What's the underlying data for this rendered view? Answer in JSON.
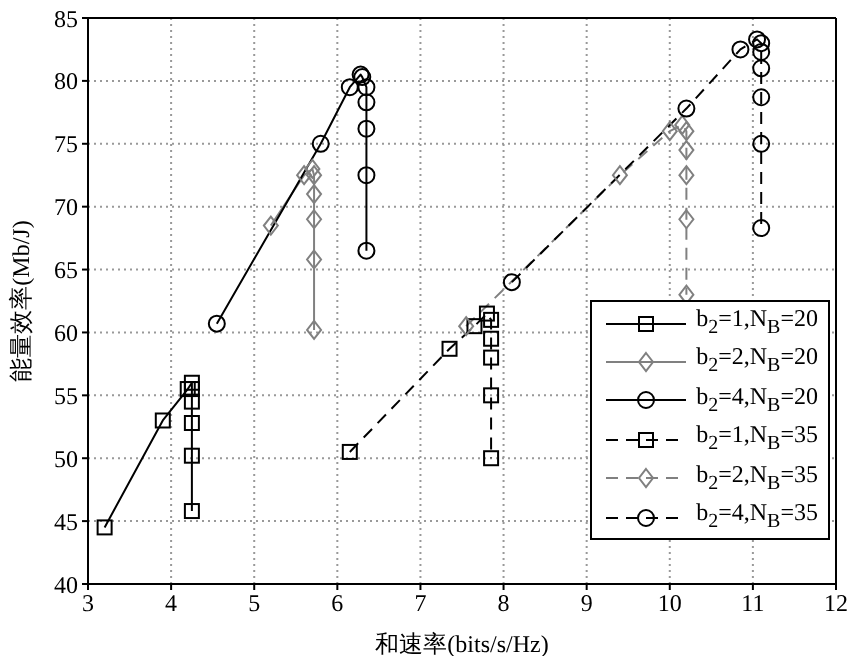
{
  "chart_data": {
    "type": "line",
    "xlabel": "和速率(bits/s/Hz)",
    "ylabel": "能量效率(Mb/J)",
    "xlim": [
      3,
      12
    ],
    "ylim": [
      40,
      85
    ],
    "xticks": [
      3,
      4,
      5,
      6,
      7,
      8,
      9,
      10,
      11,
      12
    ],
    "yticks": [
      40,
      45,
      50,
      55,
      60,
      65,
      70,
      75,
      80,
      85
    ],
    "grid": true,
    "legend": "bottom right",
    "series": [
      {
        "name": "b$_{2}$=1,N$_{B}$=20",
        "color": "#000000",
        "marker": "square",
        "line_style": "solid",
        "x": [
          3.2,
          3.9,
          4.2,
          4.25,
          4.25,
          4.25,
          4.25,
          4.25,
          4.25
        ],
        "values": [
          44.5,
          53,
          55.5,
          56,
          55.5,
          54.5,
          52.8,
          50.2,
          45.8
        ]
      },
      {
        "name": "b$_{2}$=2,N$_{B}$=20",
        "color": "#808080",
        "marker": "diamond",
        "line_style": "solid",
        "x": [
          5.2,
          5.6,
          5.7,
          5.72,
          5.72,
          5.72,
          5.72,
          5.72
        ],
        "values": [
          68.5,
          72.5,
          73,
          72.5,
          71,
          69,
          65.8,
          60.2
        ]
      },
      {
        "name": "b$_{2}$=4,N$_{B}$=20",
        "color": "#000000",
        "marker": "circle",
        "line_style": "solid",
        "x": [
          4.55,
          5.8,
          6.15,
          6.28,
          6.3,
          6.35,
          6.35,
          6.35,
          6.35,
          6.35
        ],
        "values": [
          60.7,
          75,
          79.5,
          80.5,
          80.3,
          79.5,
          78.3,
          76.2,
          72.5,
          66.5
        ]
      },
      {
        "name": "b$_{2}$=1,N$_{B}$=35",
        "color": "#000000",
        "marker": "square",
        "line_style": "dashed",
        "x": [
          6.15,
          7.35,
          7.65,
          7.8,
          7.85,
          7.85,
          7.85,
          7.85,
          7.85
        ],
        "values": [
          50.5,
          58.7,
          60.5,
          61.5,
          61,
          59.5,
          58,
          55,
          50
        ]
      },
      {
        "name": "b$_{2}$=2,N$_{B}$=35",
        "color": "#808080",
        "marker": "diamond",
        "line_style": "dashed",
        "x": [
          7.55,
          9.4,
          10.0,
          10.15,
          10.2,
          10.2,
          10.2,
          10.2,
          10.2
        ],
        "values": [
          60.5,
          72.5,
          76,
          76.5,
          76,
          74.5,
          72.5,
          69,
          63
        ]
      },
      {
        "name": "b$_{2}$=4,N$_{B}$=35",
        "color": "#000000",
        "marker": "circle",
        "line_style": "dashed",
        "x": [
          8.1,
          10.2,
          10.85,
          11.05,
          11.1,
          11.1,
          11.1,
          11.1,
          11.1,
          11.1
        ],
        "values": [
          64,
          77.8,
          82.5,
          83.3,
          83,
          82.3,
          81,
          78.7,
          75,
          68.3
        ]
      }
    ]
  }
}
